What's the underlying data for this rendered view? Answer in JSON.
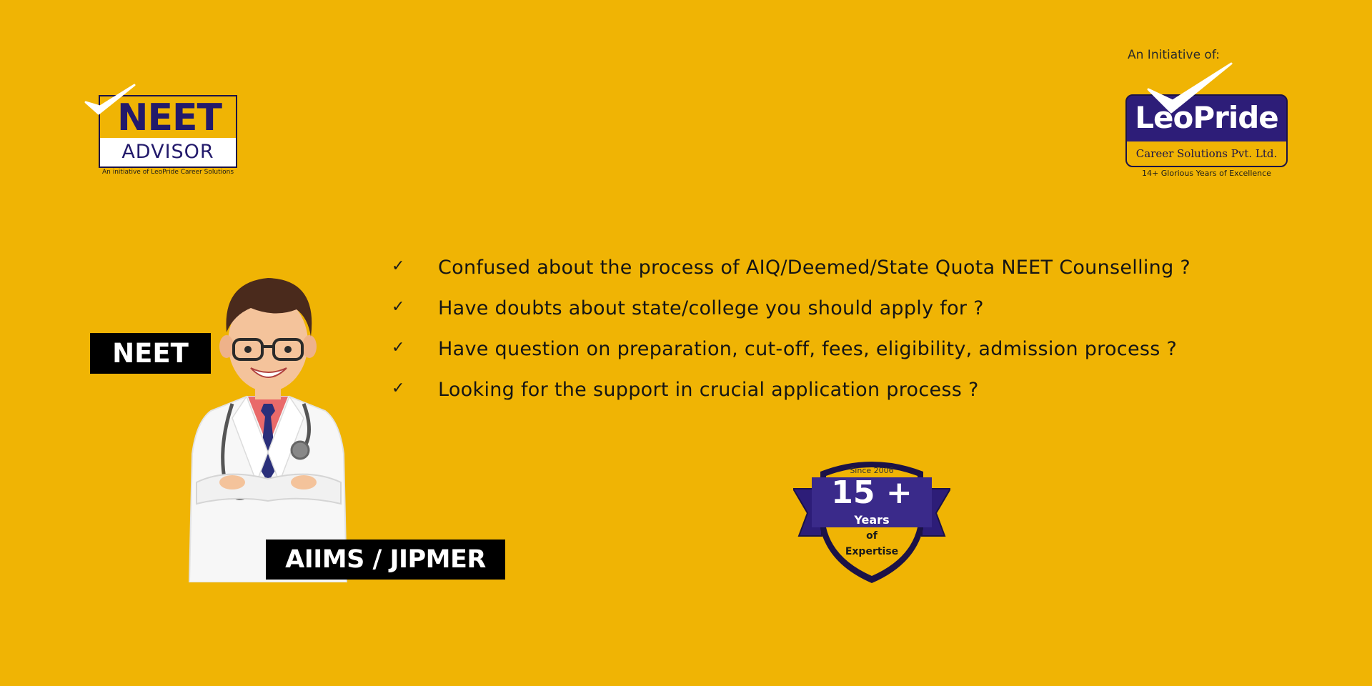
{
  "neet_logo": {
    "word_top": "NEET",
    "word_bottom": "ADVISOR",
    "tagline": "An initiative of LeoPride Career Solutions",
    "icon": "checkmark-icon"
  },
  "leopride_logo": {
    "initiative_label": "An Initiative of:",
    "brand": "LeoPride",
    "subtitle": "Career Solutions Pvt. Ltd.",
    "years_text": "14+ Glorious Years of Excellence",
    "icon": "checkmark-icon"
  },
  "bullets": [
    {
      "check": "✓",
      "text": "Confused about the process of AIQ/Deemed/State Quota NEET Counselling ?"
    },
    {
      "check": "✓",
      "text": "Have doubts about state/college you should apply for ?"
    },
    {
      "check": "✓",
      "text": "Have question on preparation, cut-off, fees, eligibility, admission process ?"
    },
    {
      "check": "✓",
      "text": "Looking for the support in crucial application process ?"
    }
  ],
  "labels": {
    "neet": "NEET",
    "aiims_jipmer": "AIIMS / JIPMER"
  },
  "badge": {
    "since": "Since 2006",
    "number": "15 +",
    "years": "Years",
    "of": "of",
    "expertise": "Expertise"
  },
  "colors": {
    "background": "#f0b404",
    "brand_purple": "#2d1d78",
    "label_black": "#000000"
  }
}
